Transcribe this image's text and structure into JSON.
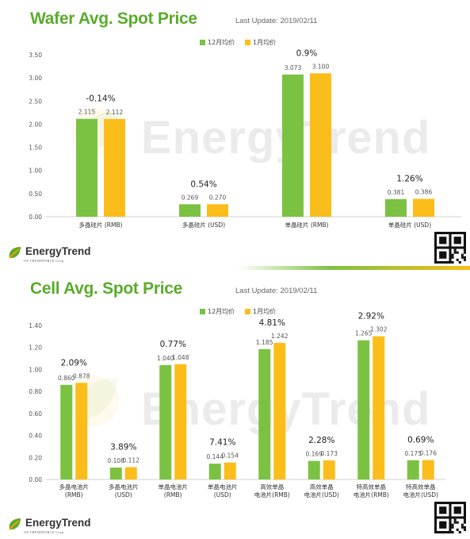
{
  "colors": {
    "dec": "#7cc242",
    "jan": "#fbbd1a",
    "title": "#5aab2b",
    "logo_green": "#5aab2b",
    "logo_orange": "#f39c12"
  },
  "logo": {
    "text": "EnergyTrend",
    "sub": "OF TRENDFORCE Corp."
  },
  "watermark": "EnergyTrend",
  "legend": {
    "dec": "12月均价",
    "jan": "1月均价"
  },
  "wafer": {
    "title": "Wafer Avg. Spot Price",
    "last_update": "Last Update: 2019/02/11"
  },
  "cell": {
    "title": "Cell Avg. Spot Price",
    "last_update": "Last Update: 2019/02/11"
  },
  "chart_data": [
    {
      "type": "bar",
      "title": "Wafer Avg. Spot Price",
      "categories": [
        "多晶硅片 (RMB)",
        "多晶硅片 (USD)",
        "单晶硅片 (RMB)",
        "单晶硅片 (USD)"
      ],
      "series": [
        {
          "name": "12月均价",
          "values": [
            2.115,
            0.269,
            3.073,
            0.381
          ],
          "labels": [
            "2.115",
            "0.269",
            "3.073",
            "0.381"
          ]
        },
        {
          "name": "1月均价",
          "values": [
            2.112,
            0.27,
            3.1,
            0.386
          ],
          "labels": [
            "2.112",
            "0.270",
            "3.100",
            "0.386"
          ]
        }
      ],
      "changes": [
        "-0.14%",
        "0.54%",
        "0.9%",
        "1.26%"
      ],
      "ylim": [
        0,
        3.5
      ],
      "yticks": [
        "0.00",
        "0.50",
        "1.00",
        "1.50",
        "2.00",
        "2.50",
        "3.00",
        "3.50"
      ],
      "legend": "top-center",
      "grid": false
    },
    {
      "type": "bar",
      "title": "Cell Avg. Spot Price",
      "categories": [
        [
          "多晶电池片",
          "(RMB)"
        ],
        [
          "多晶电池片",
          "(USD)"
        ],
        [
          "单晶电池片",
          "(RMB)"
        ],
        [
          "单晶电池片",
          "(USD)"
        ],
        [
          "高效单晶",
          "电池片(RMB)"
        ],
        [
          "高效单晶",
          "电池片(USD)"
        ],
        [
          "特高效单晶",
          "电池片(RMB)"
        ],
        [
          "特高效单晶",
          "电池片(USD)"
        ]
      ],
      "series": [
        {
          "name": "12月均价",
          "values": [
            0.86,
            0.108,
            1.04,
            0.144,
            1.185,
            0.169,
            1.265,
            0.175
          ],
          "labels": [
            "0.860",
            "0.108",
            "1.040",
            "0.144",
            "1.185",
            "0.169",
            "1.265",
            "0.175"
          ]
        },
        {
          "name": "1月均价",
          "values": [
            0.878,
            0.112,
            1.048,
            0.154,
            1.242,
            0.173,
            1.302,
            0.176
          ],
          "labels": [
            "0.878",
            "0.112",
            "1.048",
            "0.154",
            "1.242",
            "0.173",
            "1.302",
            "0.176"
          ]
        }
      ],
      "changes": [
        "2.09%",
        "3.89%",
        "0.77%",
        "7.41%",
        "4.81%",
        "2.28%",
        "2.92%",
        "0.69%"
      ],
      "ylim": [
        0,
        1.4
      ],
      "yticks": [
        "0.00",
        "0.20",
        "0.40",
        "0.60",
        "0.80",
        "1.00",
        "1.20",
        "1.40"
      ],
      "legend": "top-center",
      "grid": false
    }
  ]
}
